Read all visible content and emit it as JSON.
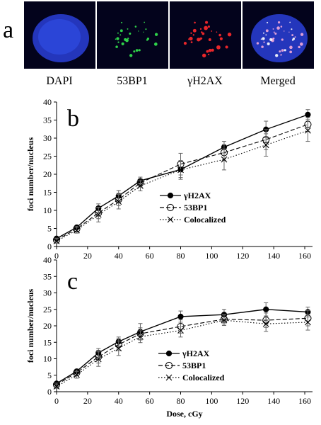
{
  "figure": {
    "panel_a": {
      "letter": "a",
      "channels": [
        {
          "label": "DAPI",
          "color": "#2a3fd8",
          "icon": "dapi-nucleus-image"
        },
        {
          "label": "53BP1",
          "color": "#2fd24a",
          "icon": "53bp1-foci-image"
        },
        {
          "label": "γH2AX",
          "color": "#e8262a",
          "icon": "gh2ax-foci-image"
        },
        {
          "label": "Merged",
          "color": "#f2a8d8",
          "icon": "merged-image"
        }
      ]
    }
  },
  "chart_data": [
    {
      "type": "line",
      "panel": "b",
      "title": "",
      "xlabel": "",
      "ylabel": "foci number/nucleus",
      "xlim": [
        0,
        165
      ],
      "ylim": [
        0,
        40
      ],
      "xticks": [
        0,
        20,
        40,
        60,
        80,
        100,
        120,
        140,
        160
      ],
      "yticks": [
        0,
        5,
        10,
        15,
        20,
        25,
        30,
        35,
        40
      ],
      "grid": false,
      "legend": "center-right",
      "x": [
        0,
        13,
        27,
        40,
        54,
        80,
        108,
        135,
        162
      ],
      "series": [
        {
          "name": "γH2AX",
          "marker": "filled-circle",
          "line": "solid",
          "values": [
            2.2,
            5.3,
            10.6,
            14.0,
            18.2,
            21.3,
            27.5,
            32.4,
            36.5
          ],
          "errors": [
            0.4,
            0.5,
            1.2,
            1.5,
            1.0,
            2.2,
            1.6,
            2.3,
            1.4
          ]
        },
        {
          "name": "53BP1",
          "marker": "open-circle",
          "line": "dashed",
          "values": [
            1.8,
            4.9,
            9.3,
            13.0,
            17.6,
            22.8,
            26.0,
            29.6,
            33.8
          ],
          "errors": [
            0.5,
            0.7,
            1.6,
            1.7,
            1.1,
            3.0,
            2.2,
            2.8,
            1.9
          ]
        },
        {
          "name": "Colocalized",
          "marker": "x",
          "line": "dotted",
          "values": [
            1.5,
            4.5,
            8.8,
            12.4,
            16.8,
            21.2,
            24.1,
            28.1,
            32.1
          ],
          "errors": [
            0.6,
            0.8,
            2.0,
            2.0,
            1.4,
            2.6,
            2.9,
            3.1,
            3.0
          ]
        }
      ]
    },
    {
      "type": "line",
      "panel": "c",
      "title": "",
      "xlabel": "Dose, cGy",
      "ylabel": "foci number/nucleus",
      "xlim": [
        0,
        165
      ],
      "ylim": [
        0,
        40
      ],
      "xticks": [
        0,
        20,
        40,
        60,
        80,
        100,
        120,
        140,
        160
      ],
      "yticks": [
        0,
        5,
        10,
        15,
        20,
        25,
        30,
        35,
        40
      ],
      "grid": false,
      "legend": "center-right",
      "x": [
        0,
        13,
        27,
        40,
        54,
        80,
        108,
        135,
        162
      ],
      "series": [
        {
          "name": "γH2AX",
          "marker": "filled-circle",
          "line": "solid",
          "values": [
            2.5,
            6.2,
            11.8,
            15.2,
            18.2,
            22.8,
            23.4,
            25.0,
            24.2
          ],
          "errors": [
            0.4,
            0.6,
            1.3,
            1.4,
            2.5,
            1.7,
            1.6,
            2.0,
            1.5
          ]
        },
        {
          "name": "53BP1",
          "marker": "open-circle",
          "line": "dashed",
          "values": [
            2.1,
            5.8,
            10.6,
            14.3,
            17.6,
            19.8,
            22.0,
            21.7,
            22.3
          ],
          "errors": [
            0.5,
            0.8,
            1.9,
            1.8,
            1.8,
            2.0,
            1.4,
            2.2,
            2.3
          ]
        },
        {
          "name": "Colocalized",
          "marker": "x",
          "line": "dotted",
          "values": [
            1.6,
            5.1,
            9.9,
            13.2,
            16.7,
            18.6,
            21.7,
            20.6,
            21.1
          ],
          "errors": [
            0.6,
            1.0,
            2.2,
            2.2,
            1.8,
            2.0,
            1.6,
            2.3,
            2.4
          ]
        }
      ]
    }
  ]
}
